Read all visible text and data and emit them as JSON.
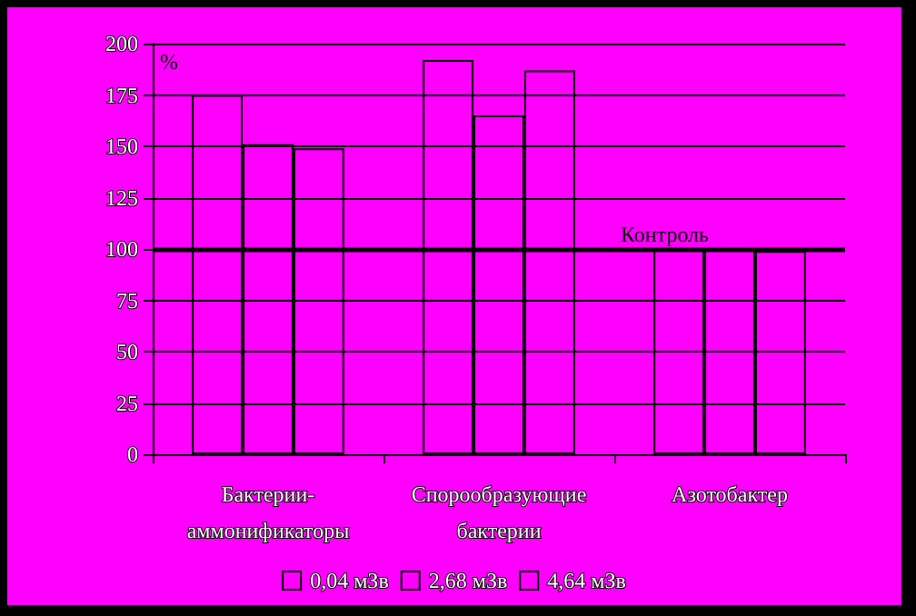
{
  "chart_data": {
    "type": "bar",
    "ylabel": "%",
    "categories": [
      "Бактерии-аммонификаторы",
      "Спорообразующие бактерии",
      "Азотобактер"
    ],
    "series": [
      {
        "name": "0,04 мЗв",
        "color": "#ff00ff",
        "values": [
          175,
          192,
          100
        ]
      },
      {
        "name": "2,68 мЗв",
        "color": "#ff00ff",
        "values": [
          151,
          165,
          100
        ]
      },
      {
        "name": "4,64 мЗв",
        "color": "#ff00ff",
        "values": [
          149,
          187,
          99
        ]
      }
    ],
    "ylim": [
      0,
      200
    ],
    "yticks": [
      0,
      25,
      50,
      75,
      100,
      125,
      150,
      175,
      200
    ],
    "ref_lines": [
      {
        "axis": "y",
        "value": 100,
        "label": "Контроль"
      }
    ],
    "grid": "y",
    "legend": "bottom"
  }
}
